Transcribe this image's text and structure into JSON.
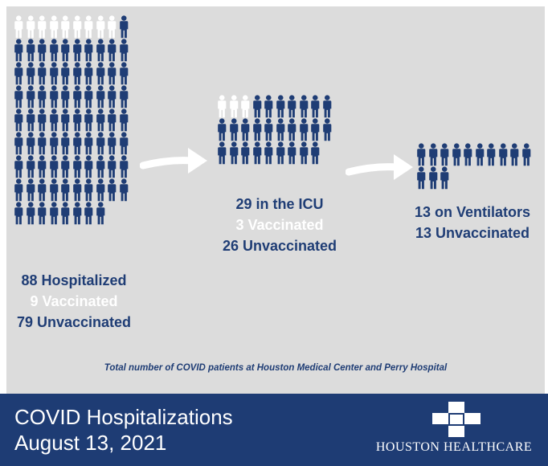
{
  "colors": {
    "navy": "#1f3d75",
    "vaccinated": "#ffffff",
    "unvaccinated": "#1f3d75",
    "panel": "#dcdcdc",
    "banner": "#1e3c74"
  },
  "icons": {
    "person": "person-icon",
    "arrow": "right-arrow-icon",
    "logo": "plus-cross-logo-icon"
  },
  "groups": [
    {
      "total": 88,
      "vaccinated": 9,
      "unvaccinated": 79,
      "line1": "88 Hospitalized",
      "line2": "9 Vaccinated",
      "line3": "79 Unvaccinated"
    },
    {
      "total": 29,
      "vaccinated": 3,
      "unvaccinated": 26,
      "line1": "29 in the ICU",
      "line2": "3 Vaccinated",
      "line3": "26 Unvaccinated"
    },
    {
      "total": 13,
      "vaccinated": 0,
      "unvaccinated": 13,
      "line1": "13 on Ventilators",
      "line2": "13 Unvaccinated"
    }
  ],
  "footnote": "Total number of COVID patients at Houston Medical Center and Perry Hospital",
  "banner": {
    "title_line1": "COVID Hospitalizations",
    "title_line2": "August 13, 2021",
    "logo_text": "HOUSTON HEALTHCARE"
  }
}
